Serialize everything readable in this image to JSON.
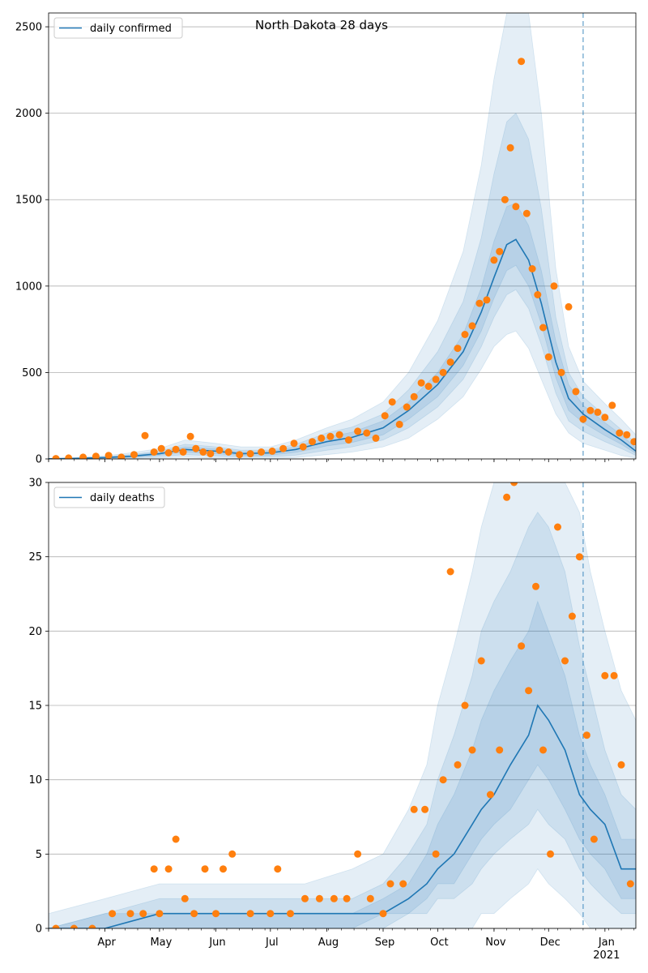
{
  "figure": {
    "title": "North Dakota 28 days"
  },
  "colors": {
    "model_line": "#1f77b4",
    "observed": "#ff7f0e",
    "band": "#1f77b4",
    "grid": "#b0b0b0"
  },
  "chart_data": [
    {
      "type": "line",
      "legend": {
        "label": "daily confirmed",
        "position": "top-left"
      },
      "xlim": [
        "2020-03-01",
        "2021-01-18"
      ],
      "ylim": [
        0,
        2580
      ],
      "yticks": [
        0,
        500,
        1000,
        1500,
        2000,
        2500
      ],
      "grid": "y",
      "forecast_marker_date": "2020-12-20",
      "model_peak": {
        "date": "2020-11-13",
        "value": 1270
      },
      "model_line": {
        "name": "daily confirmed",
        "x": [
          "2020-03-01",
          "2020-03-15",
          "2020-04-01",
          "2020-04-15",
          "2020-05-01",
          "2020-05-15",
          "2020-06-01",
          "2020-06-15",
          "2020-07-01",
          "2020-07-15",
          "2020-08-01",
          "2020-08-15",
          "2020-09-01",
          "2020-09-15",
          "2020-10-01",
          "2020-10-15",
          "2020-10-25",
          "2020-11-01",
          "2020-11-08",
          "2020-11-13",
          "2020-11-20",
          "2020-11-27",
          "2020-12-05",
          "2020-12-12",
          "2020-12-20",
          "2021-01-01",
          "2021-01-10",
          "2021-01-18"
        ],
        "y": [
          1,
          3,
          8,
          15,
          30,
          55,
          45,
          30,
          35,
          55,
          100,
          125,
          180,
          280,
          430,
          620,
          850,
          1050,
          1240,
          1270,
          1150,
          900,
          560,
          350,
          260,
          170,
          110,
          45
        ]
      },
      "bands": [
        {
          "level": "outer",
          "lower": [
            0,
            0,
            0,
            2,
            6,
            10,
            5,
            2,
            3,
            8,
            25,
            40,
            70,
            120,
            230,
            360,
            520,
            650,
            720,
            740,
            640,
            460,
            260,
            150,
            90,
            50,
            20,
            5
          ],
          "upper": [
            2,
            8,
            18,
            35,
            60,
            110,
            90,
            70,
            70,
            110,
            180,
            230,
            330,
            500,
            800,
            1200,
            1700,
            2200,
            2620,
            2620,
            2620,
            2000,
            1100,
            650,
            450,
            320,
            230,
            140
          ]
        },
        {
          "level": "middle",
          "lower": [
            0,
            1,
            3,
            6,
            14,
            25,
            18,
            10,
            12,
            22,
            50,
            70,
            110,
            180,
            300,
            460,
            650,
            820,
            950,
            980,
            870,
            660,
            380,
            220,
            160,
            100,
            60,
            20
          ],
          "upper": [
            1,
            5,
            12,
            25,
            45,
            85,
            70,
            50,
            52,
            85,
            150,
            185,
            260,
            400,
            620,
            910,
            1280,
            1650,
            1950,
            2000,
            1850,
            1450,
            820,
            500,
            360,
            250,
            170,
            90
          ]
        },
        {
          "level": "inner",
          "lower": [
            0,
            2,
            5,
            10,
            22,
            40,
            30,
            20,
            22,
            38,
            75,
            95,
            140,
            230,
            360,
            540,
            740,
            930,
            1090,
            1120,
            1000,
            780,
            470,
            280,
            210,
            135,
            85,
            32
          ],
          "upper": [
            1,
            4,
            10,
            20,
            38,
            70,
            58,
            40,
            45,
            70,
            125,
            155,
            220,
            330,
            500,
            720,
            990,
            1260,
            1460,
            1480,
            1350,
            1090,
            680,
            430,
            310,
            210,
            140,
            65
          ]
        }
      ],
      "observed": {
        "x": [
          "2020-03-05",
          "2020-03-12",
          "2020-03-20",
          "2020-03-27",
          "2020-04-03",
          "2020-04-10",
          "2020-04-17",
          "2020-04-23",
          "2020-04-28",
          "2020-05-02",
          "2020-05-06",
          "2020-05-10",
          "2020-05-14",
          "2020-05-18",
          "2020-05-21",
          "2020-05-25",
          "2020-05-29",
          "2020-06-03",
          "2020-06-08",
          "2020-06-14",
          "2020-06-20",
          "2020-06-26",
          "2020-07-02",
          "2020-07-08",
          "2020-07-14",
          "2020-07-19",
          "2020-07-24",
          "2020-07-29",
          "2020-08-03",
          "2020-08-08",
          "2020-08-13",
          "2020-08-18",
          "2020-08-23",
          "2020-08-28",
          "2020-09-02",
          "2020-09-06",
          "2020-09-10",
          "2020-09-14",
          "2020-09-18",
          "2020-09-22",
          "2020-09-26",
          "2020-09-30",
          "2020-10-04",
          "2020-10-08",
          "2020-10-12",
          "2020-10-16",
          "2020-10-20",
          "2020-10-24",
          "2020-10-28",
          "2020-11-01",
          "2020-11-04",
          "2020-11-07",
          "2020-11-10",
          "2020-11-13",
          "2020-11-16",
          "2020-11-19",
          "2020-11-22",
          "2020-11-25",
          "2020-11-28",
          "2020-12-01",
          "2020-12-04",
          "2020-12-08",
          "2020-12-12",
          "2020-12-16",
          "2020-12-20",
          "2020-12-24",
          "2020-12-28",
          "2021-01-01",
          "2021-01-05",
          "2021-01-09",
          "2021-01-13",
          "2021-01-17"
        ],
        "y": [
          2,
          5,
          10,
          15,
          20,
          10,
          25,
          135,
          40,
          60,
          35,
          55,
          40,
          130,
          60,
          40,
          30,
          50,
          40,
          25,
          30,
          40,
          45,
          60,
          90,
          70,
          100,
          120,
          130,
          140,
          110,
          160,
          150,
          120,
          250,
          330,
          200,
          300,
          360,
          440,
          420,
          460,
          500,
          560,
          640,
          720,
          770,
          900,
          920,
          1150,
          1200,
          1500,
          1800,
          1460,
          2300,
          1420,
          1100,
          950,
          760,
          590,
          1000,
          500,
          880,
          390,
          230,
          280,
          270,
          240,
          310,
          150,
          140,
          100
        ]
      }
    },
    {
      "type": "line",
      "legend": {
        "label": "daily deaths",
        "position": "top-left"
      },
      "xlim": [
        "2020-03-01",
        "2021-01-18"
      ],
      "ylim": [
        0,
        30
      ],
      "yticks": [
        0,
        5,
        10,
        15,
        20,
        25,
        30
      ],
      "xticks": [
        "Apr",
        "May",
        "Jun",
        "Jul",
        "Aug",
        "Sep",
        "Oct",
        "Nov",
        "Dec",
        "Jan"
      ],
      "xtick_dates": [
        "2020-04-01",
        "2020-05-01",
        "2020-06-01",
        "2020-07-01",
        "2020-08-01",
        "2020-09-01",
        "2020-10-01",
        "2020-11-01",
        "2020-12-01",
        "2021-01-01"
      ],
      "x_year_label": "2021",
      "grid": "y",
      "forecast_marker_date": "2020-12-20",
      "model_line": {
        "name": "daily deaths",
        "x": [
          "2020-03-01",
          "2020-04-01",
          "2020-05-01",
          "2020-06-01",
          "2020-07-01",
          "2020-07-20",
          "2020-08-15",
          "2020-09-01",
          "2020-09-15",
          "2020-09-25",
          "2020-10-01",
          "2020-10-10",
          "2020-10-20",
          "2020-10-25",
          "2020-11-01",
          "2020-11-10",
          "2020-11-20",
          "2020-11-25",
          "2020-12-01",
          "2020-12-10",
          "2020-12-18",
          "2020-12-24",
          "2021-01-01",
          "2021-01-10",
          "2021-01-18"
        ],
        "y": [
          0,
          0,
          1,
          1,
          1,
          1,
          1,
          1,
          2,
          3,
          4,
          5,
          7,
          8,
          9,
          11,
          13,
          15,
          14,
          12,
          9,
          8,
          7,
          4,
          4
        ]
      },
      "bands": [
        {
          "level": "outer",
          "lower": [
            0,
            0,
            0,
            0,
            0,
            0,
            0,
            0,
            0,
            0,
            0,
            0,
            0,
            1,
            1,
            2,
            3,
            4,
            3,
            2,
            1,
            0,
            0,
            0,
            0
          ],
          "upper": [
            1,
            2,
            3,
            3,
            3,
            3,
            4,
            5,
            8,
            11,
            15,
            19,
            24,
            27,
            30,
            30,
            30,
            30,
            30,
            30,
            28,
            24,
            20,
            16,
            14
          ]
        },
        {
          "level": "middle",
          "lower": [
            0,
            0,
            0,
            0,
            0,
            0,
            0,
            0,
            1,
            1,
            2,
            2,
            3,
            4,
            5,
            6,
            7,
            8,
            7,
            6,
            4,
            3,
            2,
            1,
            1
          ],
          "upper": [
            0,
            1,
            2,
            2,
            2,
            2,
            2,
            3,
            5,
            7,
            10,
            13,
            17,
            20,
            22,
            24,
            27,
            28,
            27,
            24,
            19,
            16,
            12,
            9,
            8
          ]
        },
        {
          "level": "inner",
          "lower": [
            0,
            0,
            0,
            0,
            0,
            0,
            0,
            1,
            1,
            2,
            3,
            3,
            5,
            6,
            7,
            8,
            10,
            11,
            10,
            8,
            6,
            5,
            4,
            2,
            2
          ],
          "upper": [
            0,
            1,
            1,
            1,
            1,
            1,
            1,
            2,
            3,
            5,
            7,
            9,
            12,
            14,
            16,
            18,
            20,
            22,
            20,
            17,
            13,
            11,
            9,
            6,
            6
          ]
        }
      ],
      "observed": {
        "x": [
          "2020-03-05",
          "2020-03-15",
          "2020-03-25",
          "2020-04-05",
          "2020-04-15",
          "2020-04-22",
          "2020-04-28",
          "2020-05-01",
          "2020-05-06",
          "2020-05-10",
          "2020-05-15",
          "2020-05-20",
          "2020-05-26",
          "2020-06-01",
          "2020-06-05",
          "2020-06-10",
          "2020-06-20",
          "2020-07-01",
          "2020-07-05",
          "2020-07-12",
          "2020-07-20",
          "2020-07-28",
          "2020-08-05",
          "2020-08-12",
          "2020-08-18",
          "2020-08-25",
          "2020-09-01",
          "2020-09-05",
          "2020-09-12",
          "2020-09-18",
          "2020-09-24",
          "2020-09-30",
          "2020-10-04",
          "2020-10-08",
          "2020-10-12",
          "2020-10-16",
          "2020-10-20",
          "2020-10-25",
          "2020-10-30",
          "2020-11-04",
          "2020-11-08",
          "2020-11-12",
          "2020-11-16",
          "2020-11-20",
          "2020-11-24",
          "2020-11-28",
          "2020-12-02",
          "2020-12-06",
          "2020-12-10",
          "2020-12-14",
          "2020-12-18",
          "2020-12-22",
          "2020-12-26",
          "2021-01-01",
          "2021-01-06",
          "2021-01-10",
          "2021-01-15"
        ],
        "y": [
          0,
          0,
          0,
          1,
          1,
          1,
          4,
          1,
          4,
          6,
          2,
          1,
          4,
          1,
          4,
          5,
          1,
          1,
          4,
          1,
          2,
          2,
          2,
          2,
          5,
          2,
          1,
          3,
          3,
          8,
          8,
          5,
          10,
          24,
          11,
          15,
          12,
          18,
          9,
          12,
          29,
          30,
          19,
          16,
          23,
          12,
          5,
          27,
          18,
          21,
          25,
          13,
          6,
          17,
          17,
          11,
          3
        ]
      }
    }
  ]
}
